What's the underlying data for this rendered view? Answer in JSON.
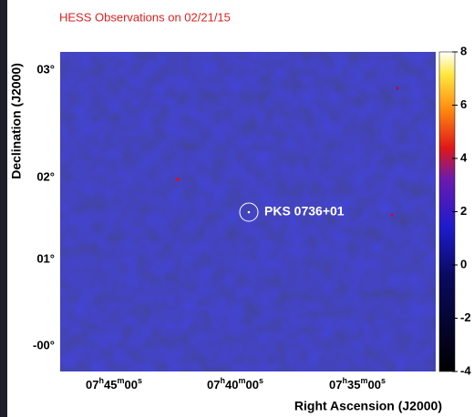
{
  "figure": {
    "title": "HESS Observations on 02/21/15",
    "x_axis_label": "Right Ascension (J2000)",
    "y_axis_label": "Declination (J2000)",
    "x_ticks": [
      {
        "parts": [
          "07",
          "h",
          "45",
          "m",
          "00",
          "s"
        ]
      },
      {
        "parts": [
          "07",
          "h",
          "40",
          "m",
          "00",
          "s"
        ]
      },
      {
        "parts": [
          "07",
          "h",
          "35",
          "m",
          "00",
          "s"
        ]
      }
    ],
    "y_ticks": [
      "03°",
      "02°",
      "01°",
      "-00°"
    ],
    "source_label": "PKS 0736+01",
    "colorbar": {
      "range": [
        -4,
        8
      ],
      "ticks": [
        8,
        6,
        4,
        2,
        0,
        -2,
        -4
      ]
    }
  }
}
